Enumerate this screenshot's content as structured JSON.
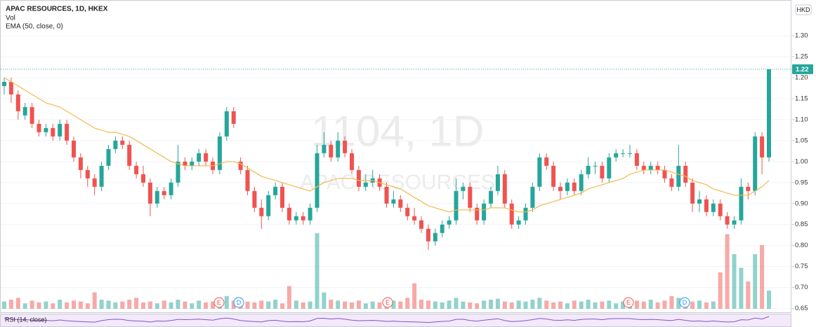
{
  "chart_data": {
    "type": "candlestick",
    "title": "APAC RESOURCES, 1D, HKEX",
    "legend": [
      "Vol",
      "EMA (50, close, 0)"
    ],
    "currency": "HKD",
    "watermark": [
      "1104, 1D",
      "APAC RESOURCES"
    ],
    "rsi_title": "RSI (14, close)",
    "events": [
      "E",
      "D",
      "E",
      "E",
      "D"
    ],
    "up_color": "#26a69a",
    "down_color": "#ef5350",
    "ema_color": "#f5b94e",
    "rsi_color": "#7e57c2",
    "ylim": [
      0.6427,
      1.3767
    ],
    "yticks": [
      0.65,
      {
        "value": 0.7,
        "label": "0.70"
      },
      0.75,
      {
        "value": 0.8,
        "label": "0.80"
      },
      0.85,
      {
        "value": 0.9,
        "label": "0.90"
      },
      0.95,
      {
        "value": 1.0,
        "label": "1.00"
      },
      1.05,
      {
        "value": 1.1,
        "label": "1.10"
      },
      1.15,
      {
        "value": 1.2,
        "label": "1.20"
      },
      1.25,
      {
        "value": 1.3,
        "label": "1.30"
      }
    ],
    "grid": true,
    "candles": [
      [
        1.18,
        1.2,
        1.16,
        1.19
      ],
      [
        1.19,
        1.2,
        1.14,
        1.16
      ],
      [
        1.16,
        1.17,
        1.1,
        1.12
      ],
      [
        1.11,
        1.14,
        1.1,
        1.13
      ],
      [
        1.13,
        1.14,
        1.08,
        1.09
      ],
      [
        1.09,
        1.1,
        1.06,
        1.07
      ],
      [
        1.07,
        1.09,
        1.06,
        1.08
      ],
      [
        1.08,
        1.09,
        1.05,
        1.06
      ],
      [
        1.06,
        1.1,
        1.05,
        1.09
      ],
      [
        1.09,
        1.1,
        1.04,
        1.05
      ],
      [
        1.05,
        1.06,
        1.0,
        1.01
      ],
      [
        1.01,
        1.02,
        0.96,
        0.98
      ],
      [
        0.98,
        0.99,
        0.94,
        0.96
      ],
      [
        0.96,
        0.97,
        0.92,
        0.94
      ],
      [
        0.94,
        1.0,
        0.93,
        0.99
      ],
      [
        0.99,
        1.04,
        0.98,
        1.03
      ],
      [
        1.03,
        1.06,
        1.02,
        1.05
      ],
      [
        1.05,
        1.06,
        1.03,
        1.04
      ],
      [
        1.04,
        1.05,
        0.98,
        0.99
      ],
      [
        0.99,
        1.0,
        0.96,
        0.97
      ],
      [
        0.97,
        0.99,
        0.94,
        0.95
      ],
      [
        0.95,
        0.96,
        0.87,
        0.9
      ],
      [
        0.9,
        0.94,
        0.89,
        0.93
      ],
      [
        0.93,
        0.94,
        0.91,
        0.92
      ],
      [
        0.92,
        0.96,
        0.91,
        0.95
      ],
      [
        0.95,
        1.04,
        0.94,
        1.0
      ],
      [
        1.0,
        1.01,
        0.98,
        0.99
      ],
      [
        0.99,
        1.01,
        0.98,
        1.0
      ],
      [
        1.0,
        1.03,
        0.99,
        1.02
      ],
      [
        1.02,
        1.03,
        0.99,
        1.0
      ],
      [
        1.0,
        1.01,
        0.97,
        0.98
      ],
      [
        0.98,
        1.07,
        0.97,
        1.06
      ],
      [
        1.06,
        1.13,
        1.05,
        1.12
      ],
      [
        1.12,
        1.13,
        1.08,
        1.09
      ],
      [
        1.0,
        1.01,
        0.97,
        0.98
      ],
      [
        0.98,
        0.99,
        0.92,
        0.93
      ],
      [
        0.93,
        0.94,
        0.88,
        0.89
      ],
      [
        0.89,
        0.91,
        0.84,
        0.87
      ],
      [
        0.87,
        0.93,
        0.86,
        0.92
      ],
      [
        0.92,
        0.95,
        0.91,
        0.94
      ],
      [
        0.94,
        0.95,
        0.88,
        0.89
      ],
      [
        0.89,
        0.9,
        0.85,
        0.86
      ],
      [
        0.86,
        0.88,
        0.85,
        0.87
      ],
      [
        0.87,
        0.88,
        0.85,
        0.86
      ],
      [
        0.86,
        0.9,
        0.85,
        0.89
      ],
      [
        0.89,
        1.04,
        0.88,
        1.02
      ],
      [
        1.02,
        1.07,
        1.01,
        1.04
      ],
      [
        1.04,
        1.05,
        1.0,
        1.01
      ],
      [
        1.01,
        1.07,
        1.0,
        1.05
      ],
      [
        1.05,
        1.06,
        1.01,
        1.02
      ],
      [
        1.02,
        1.03,
        0.97,
        0.98
      ],
      [
        0.98,
        0.99,
        0.93,
        0.94
      ],
      [
        0.94,
        0.97,
        0.93,
        0.95
      ],
      [
        0.95,
        0.98,
        0.94,
        0.96
      ],
      [
        0.96,
        0.97,
        0.93,
        0.94
      ],
      [
        0.94,
        0.95,
        0.89,
        0.9
      ],
      [
        0.9,
        0.93,
        0.89,
        0.91
      ],
      [
        0.91,
        0.92,
        0.88,
        0.89
      ],
      [
        0.89,
        0.9,
        0.86,
        0.87
      ],
      [
        0.87,
        0.89,
        0.85,
        0.86
      ],
      [
        0.86,
        0.87,
        0.83,
        0.84
      ],
      [
        0.84,
        0.85,
        0.79,
        0.81
      ],
      [
        0.81,
        0.84,
        0.8,
        0.83
      ],
      [
        0.83,
        0.86,
        0.82,
        0.85
      ],
      [
        0.85,
        0.87,
        0.84,
        0.86
      ],
      [
        0.86,
        0.96,
        0.85,
        0.93
      ],
      [
        0.93,
        0.95,
        0.91,
        0.94
      ],
      [
        0.94,
        0.95,
        0.88,
        0.89
      ],
      [
        0.89,
        0.9,
        0.85,
        0.86
      ],
      [
        0.86,
        0.91,
        0.85,
        0.9
      ],
      [
        0.9,
        0.94,
        0.89,
        0.93
      ],
      [
        0.93,
        0.99,
        0.92,
        0.97
      ],
      [
        0.97,
        0.98,
        0.89,
        0.9
      ],
      [
        0.9,
        0.91,
        0.84,
        0.85
      ],
      [
        0.85,
        0.87,
        0.84,
        0.86
      ],
      [
        0.86,
        0.9,
        0.85,
        0.89
      ],
      [
        0.89,
        0.95,
        0.88,
        0.94
      ],
      [
        0.94,
        1.02,
        0.93,
        1.01
      ],
      [
        1.01,
        1.02,
        0.98,
        0.99
      ],
      [
        0.99,
        1.0,
        0.93,
        0.94
      ],
      [
        0.94,
        0.95,
        0.91,
        0.93
      ],
      [
        0.93,
        0.96,
        0.92,
        0.95
      ],
      [
        0.95,
        0.96,
        0.92,
        0.93
      ],
      [
        0.93,
        0.98,
        0.92,
        0.97
      ],
      [
        0.97,
        1.01,
        0.96,
        0.99
      ],
      [
        0.99,
        1.0,
        0.97,
        0.99
      ],
      [
        0.99,
        1.0,
        0.95,
        0.96
      ],
      [
        0.96,
        1.02,
        0.95,
        1.01
      ],
      [
        1.01,
        1.03,
        1.0,
        1.02
      ],
      [
        1.02,
        1.03,
        1.01,
        1.02
      ],
      [
        1.02,
        1.04,
        1.01,
        1.02
      ],
      [
        1.02,
        1.03,
        0.98,
        0.99
      ],
      [
        0.99,
        1.0,
        0.97,
        0.98
      ],
      [
        0.98,
        1.0,
        0.97,
        0.99
      ],
      [
        0.99,
        1.0,
        0.97,
        0.98
      ],
      [
        0.98,
        0.99,
        0.95,
        0.96
      ],
      [
        0.96,
        0.97,
        0.93,
        0.94
      ],
      [
        0.94,
        1.04,
        0.93,
        0.99
      ],
      [
        0.99,
        1.0,
        0.94,
        0.95
      ],
      [
        0.95,
        0.96,
        0.88,
        0.9
      ],
      [
        0.9,
        0.93,
        0.88,
        0.91
      ],
      [
        0.91,
        0.92,
        0.87,
        0.88
      ],
      [
        0.88,
        0.91,
        0.87,
        0.9
      ],
      [
        0.9,
        0.91,
        0.86,
        0.87
      ],
      [
        0.87,
        0.88,
        0.84,
        0.85
      ],
      [
        0.85,
        0.87,
        0.84,
        0.86
      ],
      [
        0.86,
        0.96,
        0.85,
        0.94
      ],
      [
        0.94,
        0.95,
        0.91,
        0.93
      ],
      [
        0.93,
        1.07,
        0.92,
        1.06
      ],
      [
        1.06,
        1.07,
        0.97,
        1.01
      ],
      [
        1.01,
        1.22,
        1.0,
        1.22
      ]
    ],
    "ema": [
      1.2,
      1.19,
      1.18,
      1.17,
      1.16,
      1.15,
      1.14,
      1.135,
      1.13,
      1.12,
      1.11,
      1.1,
      1.09,
      1.08,
      1.075,
      1.07,
      1.07,
      1.065,
      1.06,
      1.05,
      1.04,
      1.03,
      1.02,
      1.01,
      1.0,
      0.995,
      0.99,
      0.99,
      0.99,
      0.99,
      0.99,
      0.995,
      1.0,
      1.0,
      0.995,
      0.985,
      0.975,
      0.965,
      0.96,
      0.955,
      0.95,
      0.945,
      0.94,
      0.935,
      0.93,
      0.94,
      0.95,
      0.955,
      0.96,
      0.96,
      0.96,
      0.955,
      0.955,
      0.955,
      0.95,
      0.945,
      0.94,
      0.935,
      0.925,
      0.915,
      0.905,
      0.895,
      0.89,
      0.885,
      0.88,
      0.885,
      0.885,
      0.885,
      0.885,
      0.885,
      0.89,
      0.89,
      0.89,
      0.885,
      0.88,
      0.88,
      0.885,
      0.895,
      0.9,
      0.905,
      0.91,
      0.915,
      0.92,
      0.925,
      0.935,
      0.94,
      0.945,
      0.95,
      0.955,
      0.96,
      0.97,
      0.975,
      0.98,
      0.98,
      0.98,
      0.98,
      0.975,
      0.97,
      0.965,
      0.955,
      0.95,
      0.945,
      0.935,
      0.93,
      0.925,
      0.92,
      0.92,
      0.92,
      0.93,
      0.94,
      0.955
    ],
    "vlim": [
      0,
      100
    ],
    "volumes": [
      8,
      10,
      12,
      6,
      9,
      7,
      8,
      6,
      10,
      7,
      9,
      8,
      6,
      18,
      10,
      9,
      7,
      8,
      10,
      12,
      7,
      8,
      6,
      9,
      7,
      10,
      8,
      6,
      9,
      7,
      8,
      12,
      14,
      9,
      10,
      8,
      7,
      9,
      8,
      10,
      6,
      25,
      9,
      7,
      8,
      83,
      18,
      10,
      9,
      8,
      7,
      9,
      6,
      8,
      7,
      10,
      9,
      8,
      12,
      28,
      10,
      9,
      8,
      7,
      9,
      12,
      8,
      7,
      6,
      9,
      10,
      11,
      8,
      7,
      9,
      8,
      10,
      12,
      9,
      7,
      8,
      6,
      9,
      8,
      10,
      7,
      8,
      9,
      6,
      8,
      7,
      9,
      8,
      10,
      7,
      9,
      14,
      12,
      10,
      8,
      9,
      7,
      8,
      40,
      82,
      60,
      45,
      30,
      60,
      70,
      20
    ],
    "rlim": [
      0,
      100
    ],
    "rsi": [
      62,
      58,
      52,
      54,
      48,
      45,
      47,
      44,
      50,
      44,
      40,
      37,
      35,
      33,
      45,
      53,
      56,
      54,
      45,
      42,
      40,
      34,
      42,
      40,
      46,
      55,
      53,
      54,
      57,
      53,
      49,
      60,
      66,
      58,
      46,
      41,
      37,
      35,
      45,
      48,
      40,
      36,
      38,
      36,
      42,
      62,
      64,
      58,
      62,
      56,
      49,
      44,
      46,
      47,
      44,
      39,
      41,
      38,
      36,
      35,
      33,
      30,
      35,
      39,
      41,
      55,
      56,
      46,
      41,
      49,
      54,
      60,
      46,
      38,
      40,
      45,
      53,
      62,
      58,
      49,
      47,
      51,
      47,
      54,
      58,
      58,
      52,
      60,
      61,
      61,
      61,
      55,
      53,
      55,
      53,
      49,
      46,
      55,
      47,
      40,
      42,
      38,
      42,
      37,
      34,
      36,
      52,
      50,
      66,
      58,
      78
    ]
  }
}
